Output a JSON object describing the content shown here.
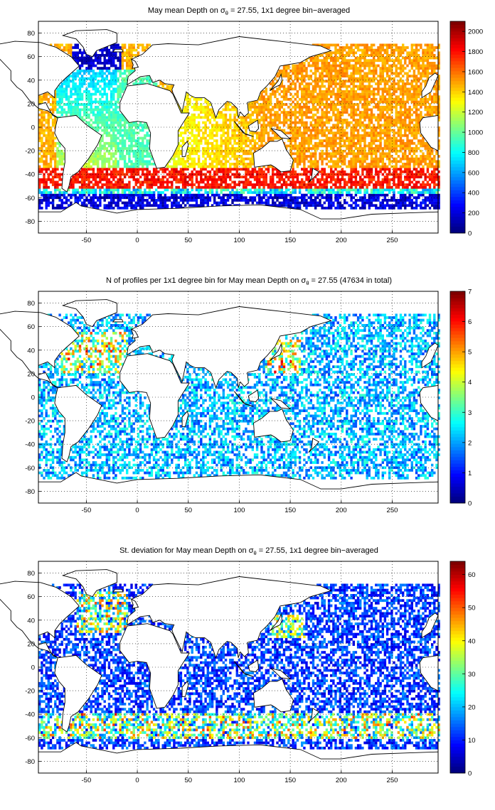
{
  "figure": {
    "panels": [
      {
        "title_main": "May mean Depth on σ",
        "title_sub": "θ",
        "title_rest": " = 27.55, 1x1 degree bin−averaged",
        "colorbar_ticks": [
          "0",
          "200",
          "400",
          "600",
          "800",
          "1000",
          "1200",
          "1400",
          "1600",
          "1800",
          "2000"
        ],
        "colorbar_max": 2100,
        "colormap": "jet"
      },
      {
        "title_main": "N of profiles per 1x1 degree bin for May mean Depth on σ",
        "title_sub": "θ",
        "title_rest": " = 27.55 (47634 in total)",
        "colorbar_ticks": [
          "0",
          "1",
          "2",
          "3",
          "4",
          "5",
          "6",
          "7"
        ],
        "colorbar_max": 7,
        "colormap": "jet"
      },
      {
        "title_main": "St. deviation for May mean Depth on σ",
        "title_sub": "θ",
        "title_rest": " = 27.55, 1x1 degree bin−averaged",
        "colorbar_ticks": [
          "0",
          "10",
          "20",
          "30",
          "40",
          "50",
          "60"
        ],
        "colorbar_max": 64,
        "colormap": "jet"
      }
    ],
    "x_ticks": [
      "-50",
      "0",
      "50",
      "100",
      "150",
      "200",
      "250"
    ],
    "y_ticks": [
      "80",
      "60",
      "40",
      "20",
      "0",
      "-20",
      "-40",
      "-60",
      "-80"
    ],
    "xlim": [
      -97,
      295
    ],
    "ylim": [
      -90,
      90
    ],
    "grid": "dotted"
  }
}
